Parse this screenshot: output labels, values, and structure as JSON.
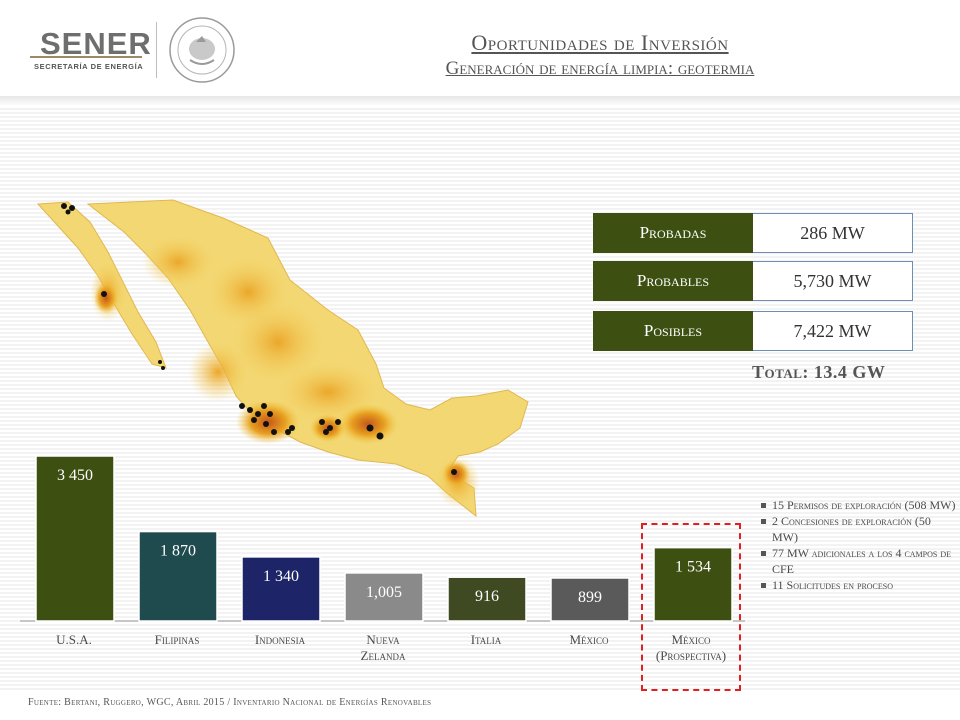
{
  "header": {
    "logo_text": "SENER",
    "logo_subtitle": "SECRETARÍA DE ENERGÍA",
    "title": "Oportunidades de Inversión",
    "subtitle": "Generación de energía limpia: geotermia"
  },
  "reserves": [
    {
      "label": "Probadas",
      "value": "286 MW"
    },
    {
      "label": "Probables",
      "value": "5,730 MW"
    },
    {
      "label": "Posibles",
      "value": "7,422 MW"
    }
  ],
  "total": "Total: 13.4 GW",
  "chart_data": {
    "type": "bar",
    "categories": [
      "U.S.A.",
      "Filipinas",
      "Indonesia",
      "Nueva Zelanda",
      "Italia",
      "México",
      "México (Prospectiva)"
    ],
    "values": [
      3450,
      1870,
      1340,
      1005,
      916,
      899,
      1534
    ],
    "value_labels": [
      "3 450",
      "1 870",
      "1 340",
      "1,005",
      "916",
      "899",
      "1 534"
    ],
    "colors": [
      "#3d5012",
      "#1f4a4e",
      "#1d2568",
      "#8a8a8a",
      "#3f4a22",
      "#5a5a5a",
      "#3d5012"
    ],
    "label_colors": [
      "#ffffff",
      "#ffffff",
      "#ffffff",
      "#ffffff",
      "#ffffff",
      "#ffffff",
      "#ffffff"
    ],
    "grid": false
  },
  "x_labels": {
    "usa": "U.S.A.",
    "filipinas": "Filipinas",
    "indonesia": "Indonesia",
    "nz_1": "Nueva",
    "nz_2": "Zelanda",
    "italia": "Italia",
    "mexico": "México",
    "mexico_p_1": "México",
    "mexico_p_2": "(Prospectiva)"
  },
  "bullets": [
    "15 Permisos de exploración (508 MW)",
    "2 Concesiones de exploración (50 MW)",
    "77 MW adicionales a los 4 campos de CFE",
    "11 Solicitudes en proceso"
  ],
  "footer": "Fuente: Bertani, Ruggero, WGC, Abril 2015 / Inventario Nacional de Energías Renovables"
}
